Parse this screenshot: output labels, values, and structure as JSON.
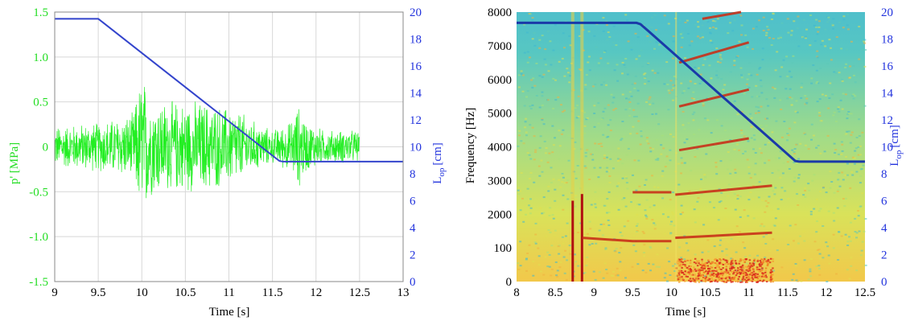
{
  "chart_data": [
    {
      "type": "line",
      "xlabel": "Time [s]",
      "ylabel_left": "p' [MPa]",
      "ylabel_right": "L",
      "ylabel_right_sub": "op",
      "ylabel_right_unit": "[cm]",
      "xlim": [
        9,
        13
      ],
      "ylim_left": [
        -1.5,
        1.5
      ],
      "ylim_right": [
        0,
        20
      ],
      "xticks": [
        "9",
        "9.5",
        "10",
        "10.5",
        "11",
        "11.5",
        "12",
        "12.5",
        "13"
      ],
      "yticks_left": [
        "-1.5",
        "-1.0",
        "-0.5",
        "0",
        "0.5",
        "1.0",
        "1.5"
      ],
      "yticks_right": [
        "0",
        "2",
        "4",
        "6",
        "8",
        "10",
        "12",
        "14",
        "16",
        "18",
        "20"
      ],
      "grid": true,
      "colors": {
        "pressure": "#22ee22",
        "length": "#3344cc",
        "left_axis": "#22dd22",
        "right_axis": "#2233dd"
      },
      "series": [
        {
          "axis": "left",
          "signal": "pressure fluctuation",
          "x": [
            9.0,
            9.5,
            9.9,
            10.0,
            10.1,
            10.3,
            10.5,
            10.7,
            10.9,
            11.1,
            11.3,
            11.5,
            11.7,
            11.8,
            11.9,
            12.1,
            12.3,
            12.5
          ],
          "amplitude": [
            0.25,
            0.3,
            0.4,
            0.9,
            0.6,
            0.55,
            0.55,
            0.55,
            0.5,
            0.45,
            0.3,
            0.2,
            0.3,
            0.5,
            0.3,
            0.2,
            0.2,
            0.2
          ]
        },
        {
          "axis": "right",
          "signal": "L_op",
          "x": [
            9.0,
            9.5,
            9.52,
            9.6,
            11.55,
            11.58,
            11.62,
            13.0
          ],
          "y": [
            19.5,
            19.5,
            19.4,
            19.0,
            9.1,
            8.95,
            8.9,
            8.9
          ]
        }
      ]
    },
    {
      "type": "heatmap",
      "xlabel": "Time [s]",
      "ylabel_left": "Frequency [Hz]",
      "ylabel_right": "L",
      "ylabel_right_sub": "op",
      "ylabel_right_unit": "[cm]",
      "xlim": [
        8,
        12.5
      ],
      "ylim_left": [
        0,
        8000
      ],
      "ylim_right": [
        0,
        20
      ],
      "xticks": [
        "8",
        "8.5",
        "9",
        "9.5",
        "10",
        "10.5",
        "11",
        "11.5",
        "12",
        "12.5"
      ],
      "yticks_left": [
        "0",
        "100",
        "2000",
        "3000",
        "4000",
        "5000",
        "6000",
        "7000",
        "8000"
      ],
      "yticks_right": [
        "0",
        "2",
        "4",
        "6",
        "8",
        "10",
        "12",
        "14",
        "16",
        "18",
        "20"
      ],
      "grid": false,
      "colormap": "jet",
      "colors": {
        "length": "#1a3aa8",
        "right_axis": "#2233dd"
      },
      "harmonics": [
        {
          "x": [
            8.85,
            9.5,
            10.0
          ],
          "y": [
            1300,
            1200,
            1200
          ]
        },
        {
          "x": [
            10.05,
            11.3
          ],
          "y": [
            1300,
            1450
          ]
        },
        {
          "x": [
            9.5,
            10.0
          ],
          "y": [
            2650,
            2650
          ]
        },
        {
          "x": [
            10.05,
            11.3
          ],
          "y": [
            2580,
            2850
          ]
        },
        {
          "x": [
            10.1,
            11.0
          ],
          "y": [
            3900,
            4250
          ]
        },
        {
          "x": [
            10.1,
            11.0
          ],
          "y": [
            5200,
            5700
          ]
        },
        {
          "x": [
            10.1,
            11.0
          ],
          "y": [
            6500,
            7100
          ]
        },
        {
          "x": [
            10.4,
            10.9
          ],
          "y": [
            7800,
            8000
          ]
        }
      ],
      "series": [
        {
          "axis": "right",
          "signal": "L_op",
          "x": [
            8.0,
            9.55,
            9.6,
            9.7,
            11.55,
            11.6,
            11.65,
            12.5
          ],
          "y": [
            19.2,
            19.2,
            19.1,
            18.6,
            9.2,
            8.95,
            8.9,
            8.9
          ]
        }
      ]
    }
  ]
}
